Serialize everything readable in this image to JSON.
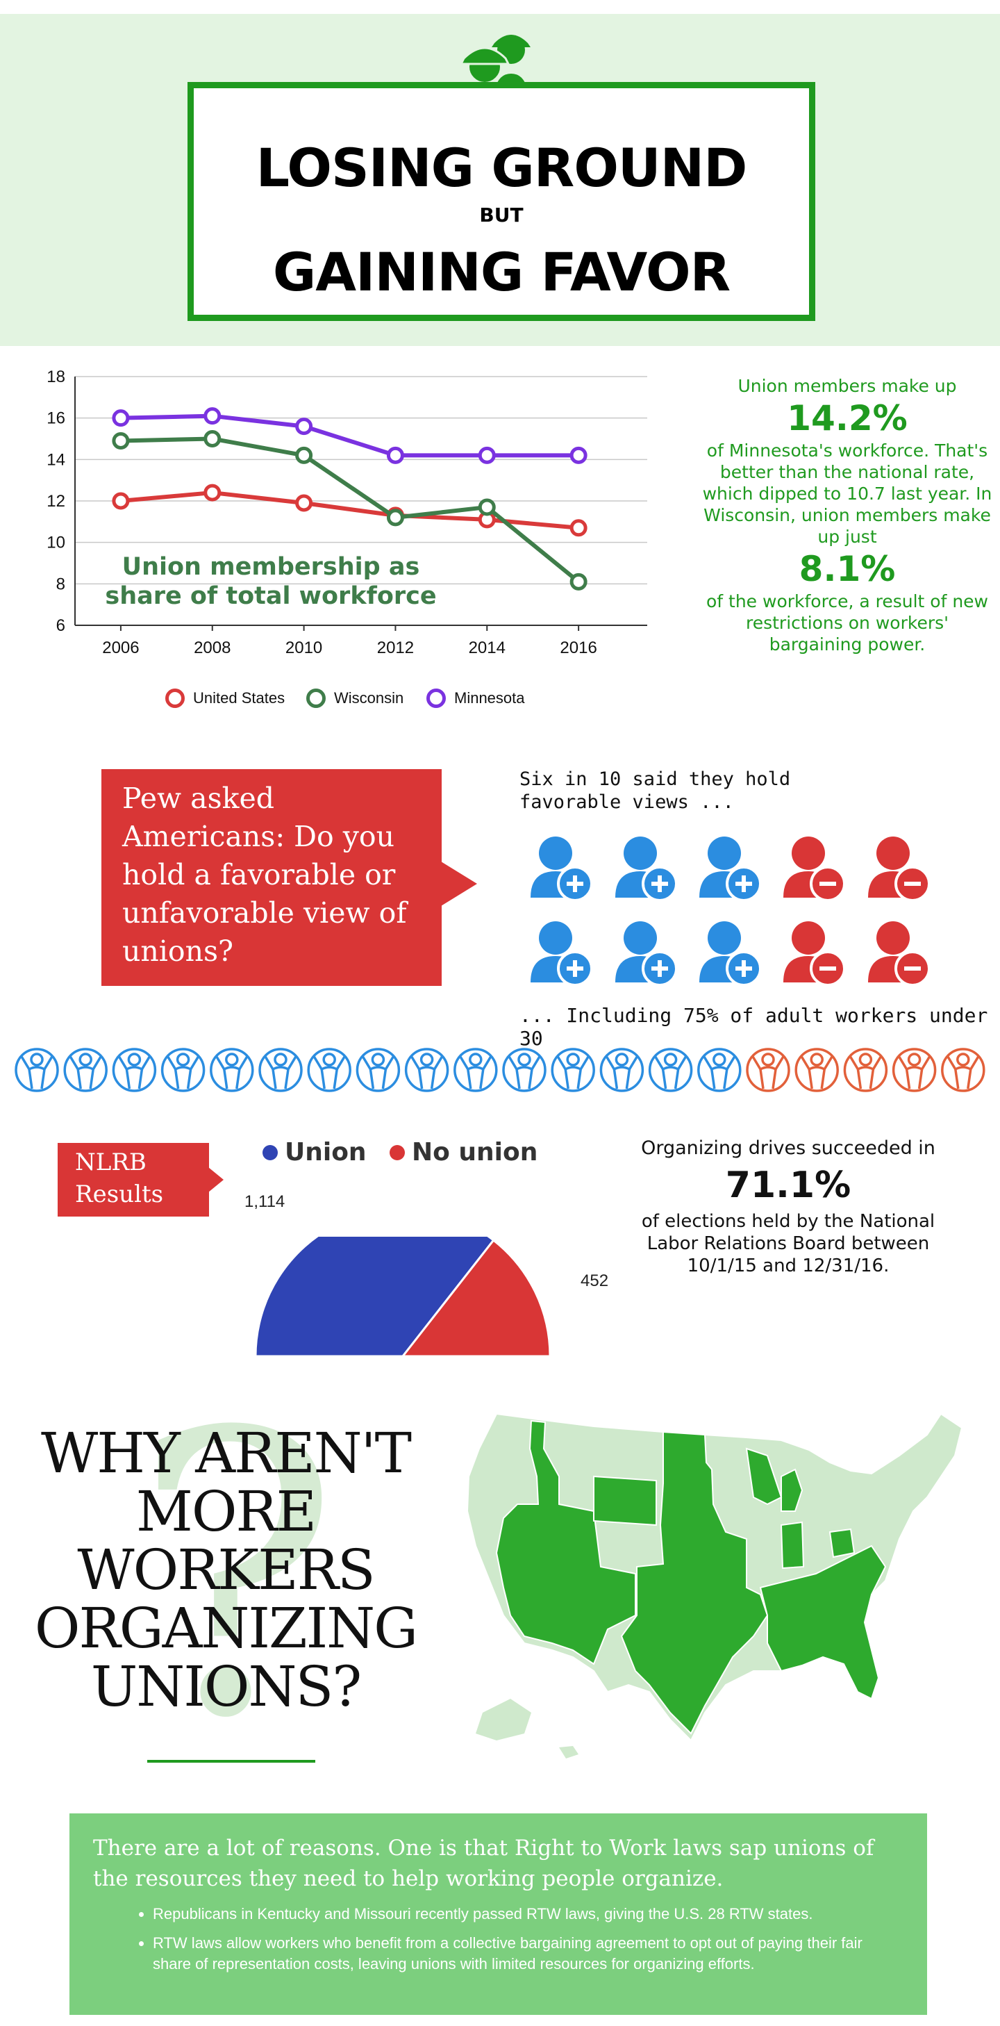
{
  "header": {
    "line1": "LOSING GROUND",
    "line2": "BUT",
    "line3": "GAINING FAVOR",
    "icon": "hard-hat-workers-icon"
  },
  "chart_data": [
    {
      "type": "line",
      "title": "Union membership as share of total workforce",
      "x": [
        2006,
        2008,
        2010,
        2012,
        2014,
        2016
      ],
      "xlim": [
        2005,
        2017.5
      ],
      "ylim": [
        6,
        18
      ],
      "yticks": [
        6,
        8,
        10,
        12,
        14,
        16,
        18
      ],
      "grid": true,
      "legend_placement": "bottom",
      "series": [
        {
          "name": "United States",
          "color": "#d93a3a",
          "values": [
            12.0,
            12.4,
            11.9,
            11.3,
            11.1,
            10.7
          ]
        },
        {
          "name": "Wisconsin",
          "color": "#3f7d4a",
          "values": [
            14.9,
            15.0,
            14.2,
            11.2,
            11.7,
            8.1
          ]
        },
        {
          "name": "Minnesota",
          "color": "#7a32e0",
          "values": [
            16.0,
            16.1,
            15.6,
            14.2,
            14.2,
            14.2
          ]
        }
      ]
    },
    {
      "type": "pie",
      "title": "NLRB Results",
      "categories": [
        "Union",
        "No union"
      ],
      "values": [
        1114,
        452
      ],
      "colors": [
        "#2f44b4",
        "#d93636"
      ],
      "labels": [
        "1,114",
        "452"
      ],
      "half_pie": true
    }
  ],
  "stats": {
    "lead": "Union members make up",
    "mn_pct": "14.2%",
    "mn_text": "of Minnesota's workforce. That's better than the national rate, which dipped to 10.7 last year. In Wisconsin, union members make up just",
    "wi_pct": "8.1%",
    "wi_text": "of the workforce, a result of new restrictions on workers' bargaining power."
  },
  "pew": {
    "question": "Pew asked Americans: Do you hold a favorable or unfavorable view of unions?",
    "six_in_ten": "Six in 10 said they hold favorable views ...",
    "favorable_count": 6,
    "unfavorable_count": 4,
    "including": "... Including 75% of adult workers under 30",
    "workers_total": 20,
    "workers_favorable": 15,
    "favorable_color": "#2b8de0",
    "unfavorable_color": "#d93636",
    "worker_favorable_color": "#2b8de0",
    "worker_unfavorable_color": "#e2603a"
  },
  "nlrb": {
    "label": "NLRB Results",
    "legend_union": "Union",
    "legend_no_union": "No union",
    "org_lead": "Organizing drives succeeded in",
    "org_pct": "71.1%",
    "org_rest": "of elections held by the National Labor Relations Board between 10/1/15 and 12/31/16."
  },
  "why": {
    "question": "WHY AREN'T MORE WORKERS ORGANIZING UNIONS?",
    "qmark": "?"
  },
  "map": {
    "rtw_color": "#2eaa2e",
    "non_rtw_color": "#cfe9cc"
  },
  "reasons": {
    "heading": "There are a lot of reasons. One is that Right to Work laws sap unions of the resources they need to help working people organize.",
    "bullets": [
      "Republicans in Kentucky and Missouri recently passed RTW laws, giving the U.S. 28 RTW states.",
      "RTW laws allow workers who benefit from a collective bargaining agreement to opt out of paying their fair share of representation costs, leaving unions with limited resources for organizing efforts."
    ]
  }
}
